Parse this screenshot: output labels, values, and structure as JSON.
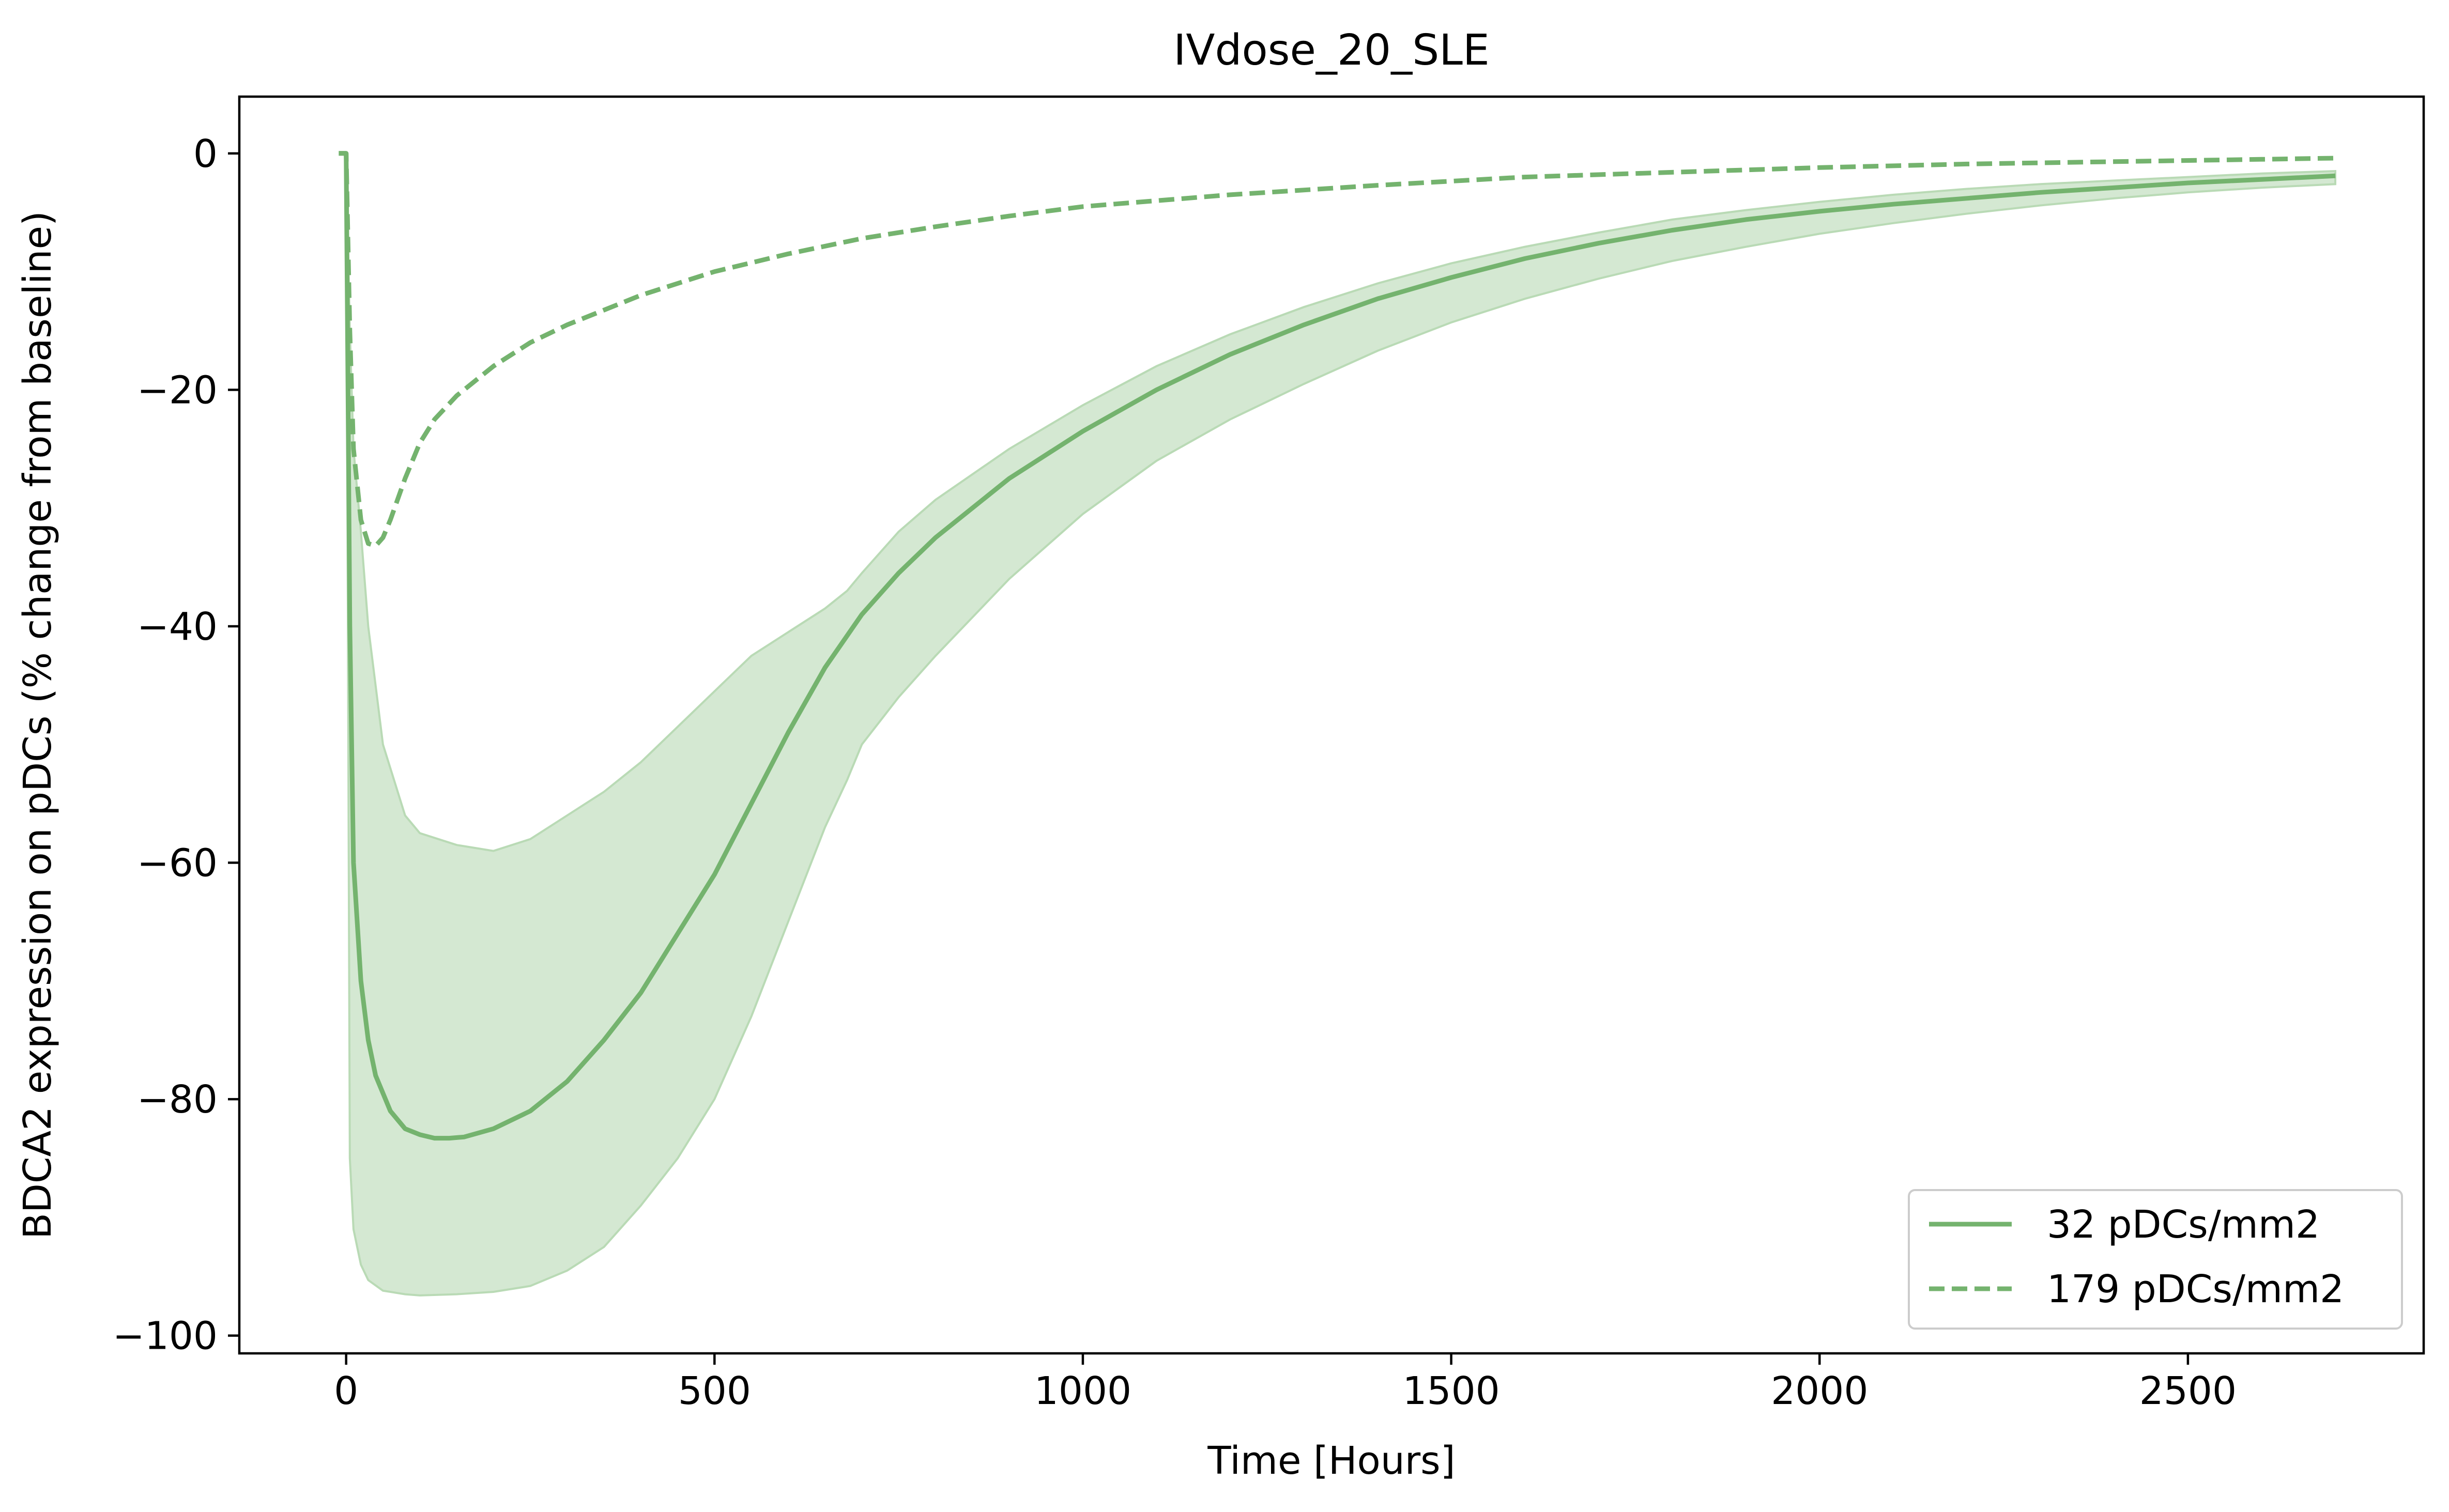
{
  "chart_data": {
    "type": "line",
    "title": "IVdose_20_SLE",
    "xlabel": "Time [Hours]",
    "ylabel": "BDCA2 expression on pDCs (% change from baseline)",
    "xlim": [
      -145,
      2820
    ],
    "ylim": [
      -101.5,
      4.8
    ],
    "xticks": [
      0,
      500,
      1000,
      1500,
      2000,
      2500
    ],
    "yticks": [
      0,
      -20,
      -40,
      -60,
      -80,
      -100
    ],
    "xtick_labels": [
      "0",
      "500",
      "1000",
      "1500",
      "2000",
      "2500"
    ],
    "ytick_labels": [
      "0",
      "−20",
      "−40",
      "−60",
      "−80",
      "−100"
    ],
    "grid": false,
    "legend_position": "lower-right",
    "color": "#74b36e",
    "band_color": "#d4e8d2",
    "series": [
      {
        "name": "32 pDCs/mm2",
        "style": "solid",
        "x": [
          -10,
          0,
          5,
          10,
          20,
          30,
          40,
          60,
          80,
          100,
          120,
          140,
          160,
          200,
          250,
          300,
          350,
          400,
          450,
          500,
          550,
          600,
          650,
          700,
          750,
          800,
          900,
          1000,
          1100,
          1200,
          1300,
          1400,
          1500,
          1600,
          1700,
          1800,
          1900,
          2000,
          2100,
          2200,
          2300,
          2400,
          2500,
          2600,
          2700
        ],
        "y": [
          0,
          0,
          -40,
          -60,
          -70,
          -75,
          -78,
          -81,
          -82.5,
          -83,
          -83.3,
          -83.3,
          -83.2,
          -82.5,
          -81,
          -78.5,
          -75,
          -71,
          -66,
          -61,
          -55,
          -49,
          -43.5,
          -39,
          -35.5,
          -32.5,
          -27.5,
          -23.5,
          -20,
          -17,
          -14.5,
          -12.3,
          -10.5,
          -8.9,
          -7.6,
          -6.5,
          -5.6,
          -4.9,
          -4.3,
          -3.8,
          -3.3,
          -2.9,
          -2.5,
          -2.2,
          -1.9
        ]
      },
      {
        "name": "179 pDCs/mm2",
        "style": "dashed",
        "x": [
          -10,
          0,
          5,
          10,
          20,
          30,
          40,
          50,
          60,
          80,
          100,
          120,
          150,
          200,
          250,
          300,
          400,
          500,
          600,
          700,
          800,
          900,
          1000,
          1200,
          1400,
          1600,
          1800,
          2000,
          2200,
          2400,
          2600,
          2700
        ],
        "y": [
          0,
          0,
          -15,
          -25,
          -31,
          -33,
          -33.2,
          -32.5,
          -31,
          -27.5,
          -24.5,
          -22.5,
          -20.5,
          -18,
          -16,
          -14.5,
          -12,
          -10,
          -8.5,
          -7.2,
          -6.2,
          -5.3,
          -4.5,
          -3.5,
          -2.7,
          -2,
          -1.6,
          -1.2,
          -0.9,
          -0.7,
          -0.5,
          -0.4
        ]
      }
    ],
    "band": {
      "x": [
        0,
        5,
        10,
        20,
        30,
        50,
        80,
        100,
        150,
        200,
        250,
        300,
        350,
        400,
        450,
        500,
        550,
        600,
        650,
        680,
        700,
        750,
        800,
        900,
        1000,
        1100,
        1200,
        1300,
        1400,
        1500,
        1600,
        1700,
        1800,
        1900,
        2000,
        2100,
        2200,
        2300,
        2400,
        2500,
        2600,
        2700
      ],
      "upper": [
        0,
        -15,
        -25,
        -32,
        -40,
        -50,
        -56,
        -57.5,
        -58.5,
        -59,
        -58,
        -56,
        -54,
        -51.5,
        -48.5,
        -45.5,
        -42.5,
        -40.5,
        -38.5,
        -37,
        -35.5,
        -32,
        -29.3,
        -25,
        -21.3,
        -18,
        -15.3,
        -13,
        -11,
        -9.3,
        -7.9,
        -6.7,
        -5.6,
        -4.8,
        -4.1,
        -3.5,
        -3,
        -2.6,
        -2.3,
        -2,
        -1.7,
        -1.5
      ],
      "lower": [
        0,
        -85,
        -91,
        -94,
        -95.3,
        -96.2,
        -96.5,
        -96.6,
        -96.5,
        -96.3,
        -95.8,
        -94.5,
        -92.5,
        -89,
        -85,
        -80,
        -73,
        -65,
        -57,
        -53,
        -50,
        -46,
        -42.5,
        -36,
        -30.5,
        -26,
        -22.5,
        -19.5,
        -16.7,
        -14.3,
        -12.3,
        -10.6,
        -9.1,
        -7.9,
        -6.8,
        -5.9,
        -5.1,
        -4.4,
        -3.8,
        -3.3,
        -2.9,
        -2.6
      ]
    }
  }
}
